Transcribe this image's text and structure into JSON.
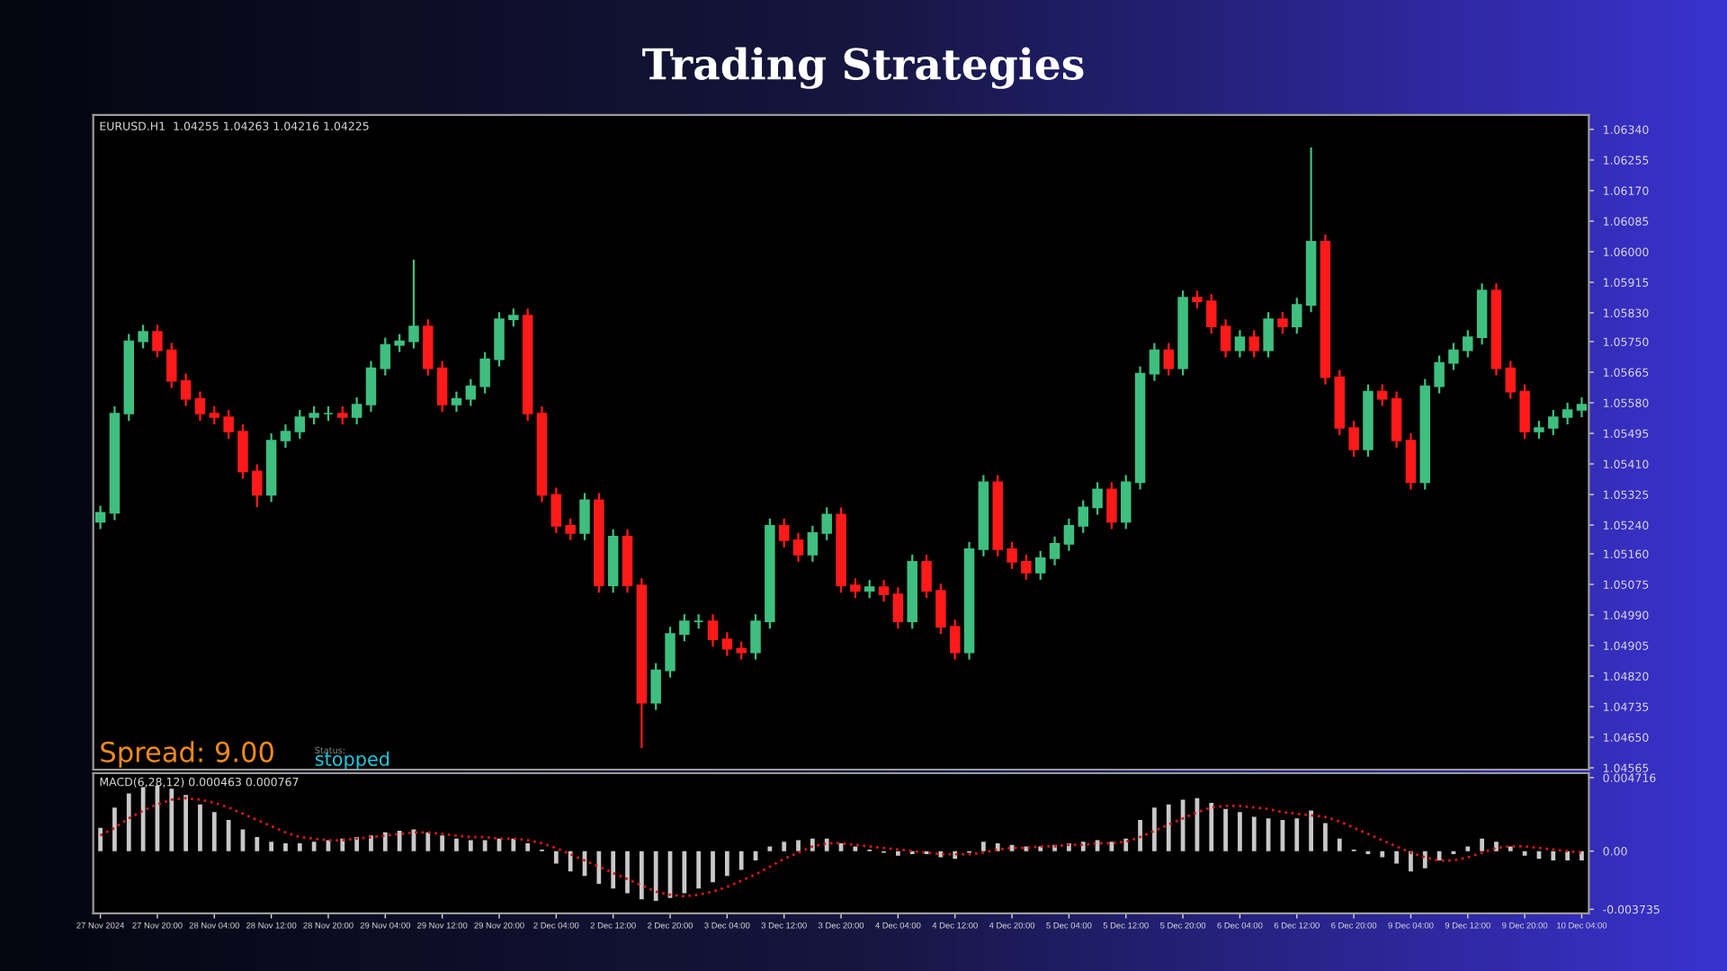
{
  "chart_data": [
    {
      "type": "candlestick",
      "title": "Trading Strategies",
      "annotations": [
        "EURUSD.H1  1.04255 1.04263 1.04216 1.04225",
        "Spread: 9.00",
        "Status:",
        "stopped"
      ],
      "categories": [
        null,
        null,
        null,
        null,
        null,
        null,
        null,
        null,
        null,
        null,
        null,
        null,
        null,
        null,
        null,
        null,
        null,
        null,
        null,
        null,
        null,
        null,
        null,
        null,
        null,
        null,
        null,
        null,
        null,
        null,
        null,
        null,
        null,
        null,
        null,
        null,
        null,
        null,
        null,
        null,
        null,
        null,
        null,
        null,
        null,
        null,
        null,
        null,
        null,
        null,
        null,
        null,
        null,
        null,
        null,
        null,
        null,
        null,
        null,
        null,
        null,
        null,
        null,
        null,
        null,
        null,
        null,
        null,
        null,
        null,
        null,
        null,
        null,
        null,
        null,
        null,
        null,
        null,
        null,
        null,
        null,
        null,
        null,
        null,
        null,
        null,
        null,
        null,
        null,
        null,
        null,
        null,
        null,
        null,
        null,
        null,
        null,
        null,
        null,
        null,
        null,
        null,
        null,
        null,
        null
      ],
      "ohlc": [
        [
          1.05249,
          1.05294,
          1.05229,
          1.05274
        ],
        [
          1.05274,
          1.0557,
          1.05254,
          1.0555
        ],
        [
          1.0555,
          1.05771,
          1.0553,
          1.05751
        ],
        [
          1.05751,
          1.05797,
          1.05731,
          1.05777
        ],
        [
          1.05777,
          1.05797,
          1.05706,
          1.05726
        ],
        [
          1.05726,
          1.05746,
          1.05621,
          1.05641
        ],
        [
          1.05641,
          1.05661,
          1.05571,
          1.05591
        ],
        [
          1.05591,
          1.05611,
          1.0553,
          1.0555
        ],
        [
          1.0555,
          1.0557,
          1.0552,
          1.0554
        ],
        [
          1.0554,
          1.0556,
          1.0548,
          1.055
        ],
        [
          1.055,
          1.0552,
          1.05369,
          1.05389
        ],
        [
          1.05389,
          1.05409,
          1.0529,
          1.05324
        ],
        [
          1.05324,
          1.05495,
          1.05304,
          1.05475
        ],
        [
          1.05475,
          1.0552,
          1.05455,
          1.055
        ],
        [
          1.055,
          1.0556,
          1.0548,
          1.0554
        ],
        [
          1.0554,
          1.0557,
          1.0552,
          1.0555
        ],
        [
          1.0555,
          1.0557,
          1.0553,
          1.0555
        ],
        [
          1.0555,
          1.0557,
          1.0552,
          1.0554
        ],
        [
          1.0554,
          1.05595,
          1.0552,
          1.05575
        ],
        [
          1.05575,
          1.05696,
          1.05555,
          1.05676
        ],
        [
          1.05676,
          1.05761,
          1.05656,
          1.05741
        ],
        [
          1.05741,
          1.05771,
          1.05721,
          1.05751
        ],
        [
          1.05751,
          1.05978,
          1.05731,
          1.05792
        ],
        [
          1.05792,
          1.05812,
          1.05656,
          1.05676
        ],
        [
          1.05676,
          1.05696,
          1.05555,
          1.05575
        ],
        [
          1.05575,
          1.05611,
          1.05555,
          1.05591
        ],
        [
          1.05591,
          1.05646,
          1.05571,
          1.05626
        ],
        [
          1.05626,
          1.05721,
          1.05606,
          1.05701
        ],
        [
          1.05701,
          1.05832,
          1.05681,
          1.05812
        ],
        [
          1.05812,
          1.05842,
          1.05792,
          1.05822
        ],
        [
          1.05822,
          1.05842,
          1.0553,
          1.0555
        ],
        [
          1.0555,
          1.0557,
          1.05304,
          1.05324
        ],
        [
          1.05324,
          1.05344,
          1.05218,
          1.05238
        ],
        [
          1.05238,
          1.05258,
          1.05198,
          1.05218
        ],
        [
          1.05218,
          1.05329,
          1.05198,
          1.05309
        ],
        [
          1.05309,
          1.05329,
          1.05052,
          1.05072
        ],
        [
          1.05072,
          1.05228,
          1.05052,
          1.05208
        ],
        [
          1.05208,
          1.05228,
          1.05052,
          1.05072
        ],
        [
          1.05072,
          1.05092,
          1.0462,
          1.04746
        ],
        [
          1.04746,
          1.04856,
          1.04726,
          1.04836
        ],
        [
          1.04836,
          1.04957,
          1.04816,
          1.04937
        ],
        [
          1.04937,
          1.04992,
          1.04917,
          1.04972
        ],
        [
          1.04972,
          1.04992,
          1.04952,
          1.04972
        ],
        [
          1.04972,
          1.04992,
          1.04902,
          1.04922
        ],
        [
          1.04922,
          1.04942,
          1.04876,
          1.04896
        ],
        [
          1.04896,
          1.04916,
          1.04866,
          1.04886
        ],
        [
          1.04886,
          1.04992,
          1.04866,
          1.04972
        ],
        [
          1.04972,
          1.05258,
          1.04952,
          1.05238
        ],
        [
          1.05238,
          1.05258,
          1.05178,
          1.05198
        ],
        [
          1.05198,
          1.05218,
          1.05138,
          1.05158
        ],
        [
          1.05158,
          1.05238,
          1.05138,
          1.05218
        ],
        [
          1.05218,
          1.05289,
          1.05198,
          1.05269
        ],
        [
          1.05269,
          1.05289,
          1.05052,
          1.05072
        ],
        [
          1.05072,
          1.05092,
          1.05037,
          1.05057
        ],
        [
          1.05057,
          1.05087,
          1.05037,
          1.05067
        ],
        [
          1.05067,
          1.05087,
          1.05027,
          1.05047
        ],
        [
          1.05047,
          1.05067,
          1.04952,
          1.04972
        ],
        [
          1.04972,
          1.05158,
          1.04952,
          1.05138
        ],
        [
          1.05138,
          1.05158,
          1.05037,
          1.05057
        ],
        [
          1.05057,
          1.05077,
          1.04937,
          1.04957
        ],
        [
          1.04957,
          1.04977,
          1.04866,
          1.04886
        ],
        [
          1.04886,
          1.05193,
          1.04866,
          1.05173
        ],
        [
          1.05173,
          1.05379,
          1.05153,
          1.05359
        ],
        [
          1.05359,
          1.05379,
          1.05153,
          1.05173
        ],
        [
          1.05173,
          1.05193,
          1.05118,
          1.05138
        ],
        [
          1.05138,
          1.05158,
          1.05088,
          1.05108
        ],
        [
          1.05108,
          1.05168,
          1.05088,
          1.05148
        ],
        [
          1.05148,
          1.05208,
          1.05128,
          1.05188
        ],
        [
          1.05188,
          1.05258,
          1.05168,
          1.05238
        ],
        [
          1.05238,
          1.05309,
          1.05218,
          1.05289
        ],
        [
          1.05289,
          1.05359,
          1.05269,
          1.05339
        ],
        [
          1.05339,
          1.05359,
          1.05229,
          1.05249
        ],
        [
          1.05249,
          1.05379,
          1.05229,
          1.05359
        ],
        [
          1.05359,
          1.05681,
          1.05339,
          1.05661
        ],
        [
          1.05661,
          1.05746,
          1.05641,
          1.05726
        ],
        [
          1.05726,
          1.05746,
          1.05656,
          1.05676
        ],
        [
          1.05676,
          1.05892,
          1.05656,
          1.05872
        ],
        [
          1.05872,
          1.05892,
          1.05842,
          1.05862
        ],
        [
          1.05862,
          1.05882,
          1.05772,
          1.05792
        ],
        [
          1.05792,
          1.05812,
          1.05706,
          1.05726
        ],
        [
          1.05726,
          1.05782,
          1.05706,
          1.05762
        ],
        [
          1.05762,
          1.05782,
          1.05706,
          1.05726
        ],
        [
          1.05726,
          1.05832,
          1.05706,
          1.05812
        ],
        [
          1.05812,
          1.05832,
          1.05772,
          1.05792
        ],
        [
          1.05792,
          1.05872,
          1.05772,
          1.05852
        ],
        [
          1.05852,
          1.0629,
          1.05832,
          1.06028
        ],
        [
          1.06028,
          1.06048,
          1.05631,
          1.05651
        ],
        [
          1.05651,
          1.05671,
          1.0549,
          1.0551
        ],
        [
          1.0551,
          1.0553,
          1.0543,
          1.0545
        ],
        [
          1.0545,
          1.05631,
          1.0543,
          1.05611
        ],
        [
          1.05611,
          1.05631,
          1.05571,
          1.05591
        ],
        [
          1.05591,
          1.05611,
          1.05455,
          1.05475
        ],
        [
          1.05475,
          1.05495,
          1.05339,
          1.05359
        ],
        [
          1.05359,
          1.05646,
          1.05339,
          1.05626
        ],
        [
          1.05626,
          1.05711,
          1.05606,
          1.05691
        ],
        [
          1.05691,
          1.05746,
          1.05671,
          1.05726
        ],
        [
          1.05726,
          1.05782,
          1.05706,
          1.05762
        ],
        [
          1.05762,
          1.05912,
          1.05742,
          1.05892
        ],
        [
          1.05892,
          1.05912,
          1.05656,
          1.05676
        ],
        [
          1.05676,
          1.05696,
          1.05591,
          1.05611
        ],
        [
          1.05611,
          1.05631,
          1.0548,
          1.055
        ],
        [
          1.055,
          1.0553,
          1.0548,
          1.0551
        ],
        [
          1.0551,
          1.0556,
          1.0549,
          1.0554
        ],
        [
          1.0554,
          1.0558,
          1.0552,
          1.0556
        ],
        [
          1.0556,
          1.05595,
          1.0554,
          1.05575
        ]
      ],
      "colors": [
        "#3fbf7f",
        "#3fbf7f",
        "#3fbf7f",
        "#3fbf7f",
        "#ff1a1a",
        "#ff1a1a",
        "#ff1a1a",
        "#ff1a1a",
        "#ff1a1a",
        "#ff1a1a",
        "#ff1a1a",
        "#ff1a1a",
        "#3fbf7f",
        "#3fbf7f",
        "#3fbf7f",
        "#3fbf7f",
        "#3fbf7f",
        "#ff1a1a",
        "#3fbf7f",
        "#3fbf7f",
        "#3fbf7f",
        "#3fbf7f",
        "#3fbf7f",
        "#ff1a1a",
        "#ff1a1a",
        "#3fbf7f",
        "#3fbf7f",
        "#3fbf7f",
        "#3fbf7f",
        "#3fbf7f",
        "#ff1a1a",
        "#ff1a1a",
        "#ff1a1a",
        "#ff1a1a",
        "#3fbf7f",
        "#ff1a1a",
        "#3fbf7f",
        "#ff1a1a",
        "#ff1a1a",
        "#3fbf7f",
        "#3fbf7f",
        "#3fbf7f",
        "#3fbf7f",
        "#ff1a1a",
        "#ff1a1a",
        "#ff1a1a",
        "#3fbf7f",
        "#3fbf7f",
        "#ff1a1a",
        "#ff1a1a",
        "#3fbf7f",
        "#3fbf7f",
        "#ff1a1a",
        "#ff1a1a",
        "#3fbf7f",
        "#ff1a1a",
        "#ff1a1a",
        "#3fbf7f",
        "#ff1a1a",
        "#ff1a1a",
        "#ff1a1a",
        "#3fbf7f",
        "#3fbf7f",
        "#ff1a1a",
        "#ff1a1a",
        "#ff1a1a",
        "#3fbf7f",
        "#3fbf7f",
        "#3fbf7f",
        "#3fbf7f",
        "#3fbf7f",
        "#ff1a1a",
        "#3fbf7f",
        "#3fbf7f",
        "#3fbf7f",
        "#ff1a1a",
        "#3fbf7f",
        "#ff1a1a",
        "#ff1a1a",
        "#ff1a1a",
        "#3fbf7f",
        "#ff1a1a",
        "#3fbf7f",
        "#ff1a1a",
        "#3fbf7f",
        "#3fbf7f",
        "#ff1a1a",
        "#ff1a1a",
        "#ff1a1a",
        "#3fbf7f",
        "#ff1a1a",
        "#ff1a1a",
        "#ff1a1a",
        "#3fbf7f",
        "#3fbf7f",
        "#3fbf7f",
        "#3fbf7f",
        "#3fbf7f",
        "#ff1a1a",
        "#ff1a1a",
        "#ff1a1a",
        "#3fbf7f",
        "#3fbf7f",
        "#3fbf7f",
        "#3fbf7f"
      ],
      "ylim": [
        1.0456,
        1.0638
      ],
      "yticks": [
        {
          "value": 1.0634,
          "label": "1.06340"
        },
        {
          "value": 1.06255,
          "label": "1.06255"
        },
        {
          "value": 1.0617,
          "label": "1.06170"
        },
        {
          "value": 1.06085,
          "label": "1.06085"
        },
        {
          "value": 1.06,
          "label": "1.06000"
        },
        {
          "value": 1.05915,
          "label": "1.05915"
        },
        {
          "value": 1.0583,
          "label": "1.05830"
        },
        {
          "value": 1.0575,
          "label": "1.05750"
        },
        {
          "value": 1.05665,
          "label": "1.05665"
        },
        {
          "value": 1.0558,
          "label": "1.05580"
        },
        {
          "value": 1.05495,
          "label": "1.05495"
        },
        {
          "value": 1.0541,
          "label": "1.05410"
        },
        {
          "value": 1.05325,
          "label": "1.05325"
        },
        {
          "value": 1.0524,
          "label": "1.05240"
        },
        {
          "value": 1.0516,
          "label": "1.05160"
        },
        {
          "value": 1.05075,
          "label": "1.05075"
        },
        {
          "value": 1.0499,
          "label": "1.04990"
        },
        {
          "value": 1.04905,
          "label": "1.04905"
        },
        {
          "value": 1.0482,
          "label": "1.04820"
        },
        {
          "value": 1.04735,
          "label": "1.04735"
        },
        {
          "value": 1.0465,
          "label": "1.04650"
        },
        {
          "value": 1.04565,
          "label": "1.04565"
        }
      ],
      "tick_labels": "y"
    },
    {
      "type": "bar",
      "annotations": [
        "MACD(6,28,12) 0.000463 0.000767"
      ],
      "categories": [
        "27 Nov 2024",
        null,
        null,
        null,
        "27 Nov 20:00",
        null,
        null,
        null,
        "28 Nov 04:00",
        null,
        null,
        null,
        "28 Nov 12:00",
        null,
        null,
        null,
        "28 Nov 20:00",
        null,
        null,
        null,
        "29 Nov 04:00",
        null,
        null,
        null,
        "29 Nov 12:00",
        null,
        null,
        null,
        "29 Nov 20:00",
        null,
        null,
        null,
        "2 Dec 04:00",
        null,
        null,
        null,
        "2 Dec 12:00",
        null,
        null,
        null,
        "2 Dec 20:00",
        null,
        null,
        null,
        "3 Dec 04:00",
        null,
        null,
        null,
        "3 Dec 12:00",
        null,
        null,
        null,
        "3 Dec 20:00",
        null,
        null,
        null,
        "4 Dec 04:00",
        null,
        null,
        null,
        "4 Dec 12:00",
        null,
        null,
        null,
        "4 Dec 20:00",
        null,
        null,
        null,
        "5 Dec 04:00",
        null,
        null,
        null,
        "5 Dec 12:00",
        null,
        null,
        null,
        "5 Dec 20:00",
        null,
        null,
        null,
        "6 Dec 04:00",
        null,
        null,
        null,
        "6 Dec 12:00",
        null,
        null,
        null,
        "6 Dec 20:00",
        null,
        null,
        null,
        "9 Dec 04:00",
        null,
        null,
        null,
        "9 Dec 12:00",
        null,
        null,
        null,
        "9 Dec 20:00",
        null,
        null,
        null,
        "10 Dec 04:00"
      ],
      "series": [
        {
          "color": "#c8c8c8",
          "values": [
            0.0015,
            0.0028,
            0.0037,
            0.0041,
            0.0042,
            0.004,
            0.0036,
            0.003,
            0.0025,
            0.002,
            0.0014,
            0.0009,
            0.0006,
            0.0005,
            0.0005,
            0.0006,
            0.0007,
            0.0008,
            0.0009,
            0.001,
            0.0012,
            0.0013,
            0.0014,
            0.0012,
            0.001,
            0.0008,
            0.0007,
            0.0007,
            0.0008,
            0.0008,
            0.0005,
            0.0001,
            -0.0008,
            -0.0013,
            -0.0016,
            -0.0021,
            -0.0024,
            -0.0027,
            -0.0031,
            -0.0032,
            -0.003,
            -0.0027,
            -0.0024,
            -0.002,
            -0.0016,
            -0.0012,
            -0.0006,
            0.0003,
            0.0006,
            0.0007,
            0.0008,
            0.0008,
            0.0005,
            0.0003,
            0.0001,
            -0.0001,
            -0.0003,
            -0.0002,
            -0.0002,
            -0.0004,
            -0.0005,
            -0.0001,
            0.0006,
            0.0005,
            0.0004,
            0.0003,
            0.0003,
            0.0004,
            0.0005,
            0.0006,
            0.0007,
            0.0006,
            0.0008,
            0.002,
            0.0028,
            0.003,
            0.0033,
            0.0034,
            0.0031,
            0.0027,
            0.0025,
            0.0022,
            0.0021,
            0.002,
            0.0021,
            0.0026,
            0.0018,
            0.0008,
            0.0001,
            -0.0002,
            -0.0004,
            -0.0008,
            -0.0013,
            -0.0011,
            -0.0006,
            -0.0002,
            0.0003,
            0.0008,
            0.0006,
            0.0003,
            -0.0003,
            -0.0005,
            -0.0006,
            -0.0006,
            -0.0006
          ]
        },
        {
          "type": "line",
          "line_style": "dotted",
          "color": "#d01818",
          "values": [
            0.001,
            0.0015,
            0.0021,
            0.0026,
            0.003,
            0.0033,
            0.0034,
            0.0033,
            0.0031,
            0.0028,
            0.0024,
            0.002,
            0.0016,
            0.0012,
            0.0009,
            0.0008,
            0.0007,
            0.0007,
            0.0008,
            0.0009,
            0.001,
            0.0011,
            0.0012,
            0.0012,
            0.0011,
            0.001,
            0.0009,
            0.0009,
            0.0008,
            0.0008,
            0.0007,
            0.0005,
            0.0002,
            -0.0002,
            -0.0006,
            -0.001,
            -0.0014,
            -0.0018,
            -0.0022,
            -0.0026,
            -0.0028,
            -0.0029,
            -0.0028,
            -0.0026,
            -0.0023,
            -0.0019,
            -0.0015,
            -0.001,
            -0.0005,
            -0.0001,
            0.0003,
            0.0005,
            0.0005,
            0.0004,
            0.0003,
            0.0002,
            0.0001,
            0.0,
            -0.0001,
            -0.0002,
            -0.0002,
            -0.0002,
            -0.0001,
            0.0001,
            0.0002,
            0.0002,
            0.0003,
            0.0003,
            0.0004,
            0.0004,
            0.0005,
            0.0005,
            0.0006,
            0.0009,
            0.0013,
            0.0017,
            0.0021,
            0.0025,
            0.0028,
            0.0029,
            0.0029,
            0.0028,
            0.0027,
            0.0025,
            0.0024,
            0.0023,
            0.0022,
            0.0019,
            0.0015,
            0.0011,
            0.0007,
            0.0003,
            -0.0001,
            -0.0004,
            -0.0006,
            -0.0006,
            -0.0004,
            -0.0001,
            0.0002,
            0.0003,
            0.0003,
            0.0002,
            0.0001,
            0.0,
            -0.0001
          ]
        }
      ],
      "ylim": [
        -0.004,
        0.005
      ],
      "yticks": [
        0.004716,
        {
          "value": 0,
          "label": "0.00"
        },
        -0.003735
      ]
    }
  ]
}
